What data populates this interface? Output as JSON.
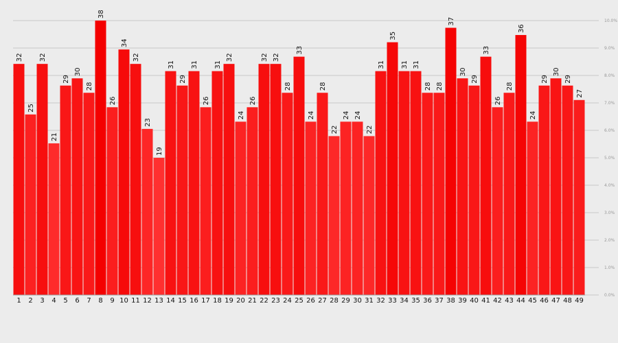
{
  "chart_data": {
    "type": "bar",
    "categories": [
      "1",
      "2",
      "3",
      "4",
      "5",
      "6",
      "7",
      "8",
      "9",
      "10",
      "11",
      "12",
      "13",
      "14",
      "15",
      "16",
      "17",
      "18",
      "19",
      "20",
      "21",
      "22",
      "23",
      "24",
      "25",
      "26",
      "27",
      "28",
      "29",
      "30",
      "31",
      "32",
      "33",
      "34",
      "35",
      "36",
      "37",
      "38",
      "39",
      "40",
      "41",
      "42",
      "43",
      "44",
      "45",
      "46",
      "47",
      "48",
      "49"
    ],
    "values": [
      32,
      25,
      32,
      21,
      29,
      30,
      28,
      38,
      26,
      34,
      32,
      23,
      19,
      31,
      29,
      31,
      26,
      31,
      32,
      24,
      26,
      32,
      32,
      28,
      33,
      24,
      28,
      22,
      24,
      24,
      22,
      31,
      35,
      31,
      31,
      28,
      28,
      37,
      30,
      29,
      33,
      26,
      28,
      36,
      24,
      29,
      30,
      29,
      27
    ],
    "ylim": [
      0,
      38
    ],
    "y_ticks": [
      "0.0%",
      "1.0%",
      "2.0%",
      "3.0%",
      "4.0%",
      "5.0%",
      "6.0%",
      "7.0%",
      "8.0%",
      "9.0%",
      "10.0%"
    ],
    "grid": true,
    "legend": "none",
    "colors": {
      "bar_light": "#ff3030",
      "bar_dark": "#f40000",
      "grid": "#c8c8c8",
      "background": "#ececec"
    }
  }
}
